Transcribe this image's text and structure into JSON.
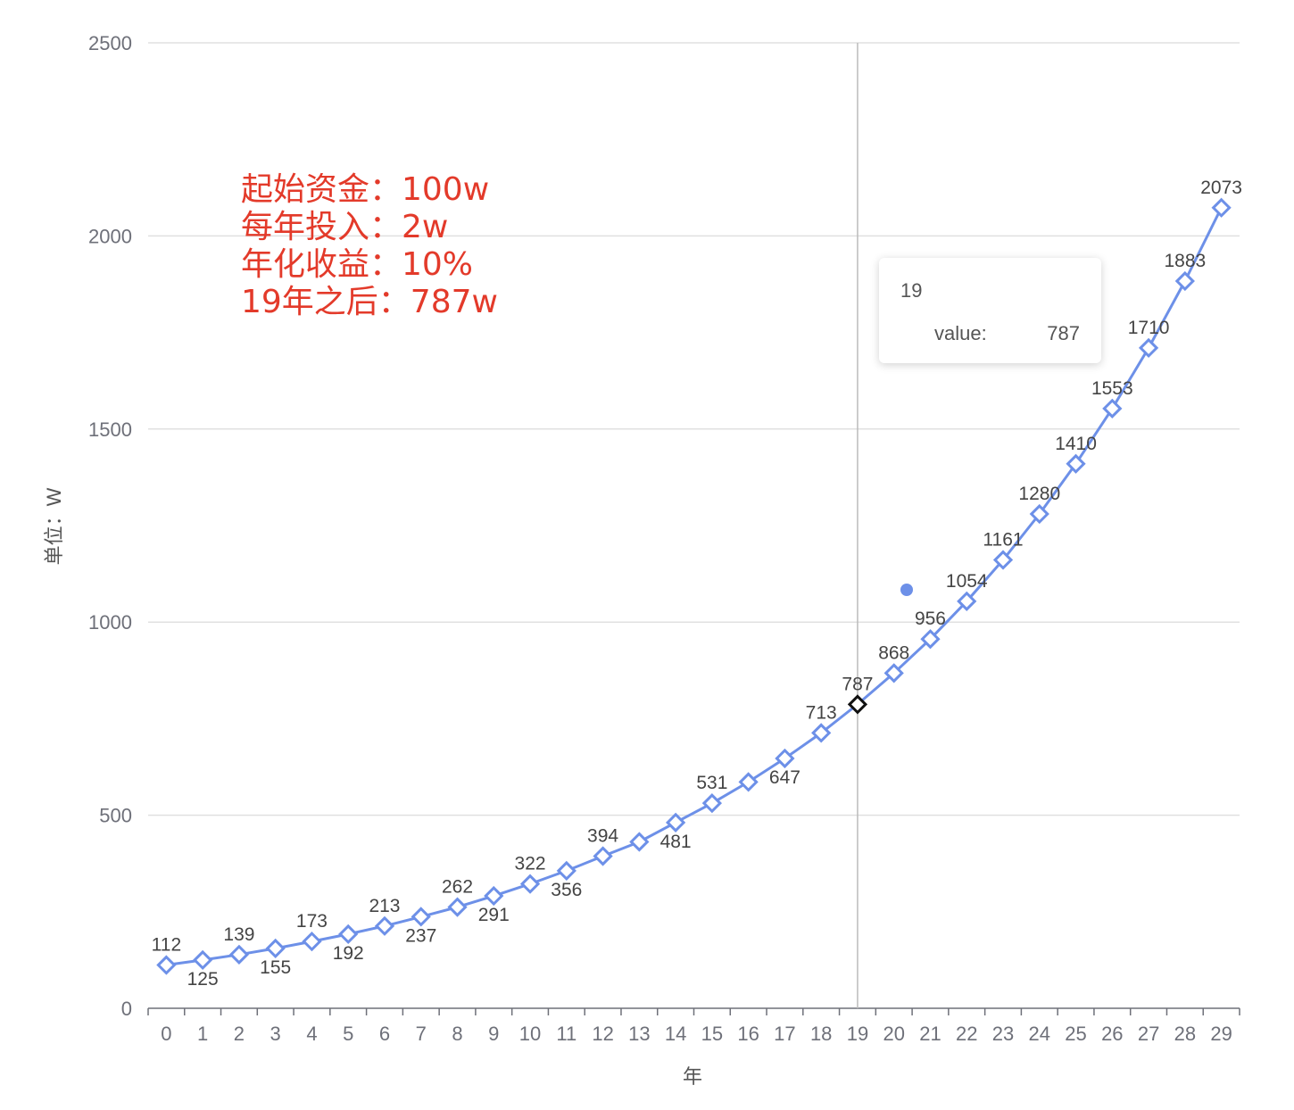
{
  "chart_data": {
    "type": "line",
    "xlabel": "年",
    "ylabel": "单位：W",
    "ylim": [
      0,
      2500
    ],
    "yticks": [
      0,
      500,
      1000,
      1500,
      2000,
      2500
    ],
    "x": [
      0,
      1,
      2,
      3,
      4,
      5,
      6,
      7,
      8,
      9,
      10,
      11,
      12,
      13,
      14,
      15,
      16,
      17,
      18,
      19,
      20,
      21,
      22,
      23,
      24,
      25,
      26,
      27,
      28,
      29
    ],
    "series": [
      {
        "values": [
          112,
          125,
          139,
          155,
          173,
          192,
          213,
          237,
          262,
          291,
          322,
          356,
          394,
          431,
          481,
          531,
          586,
          647,
          713,
          787,
          868,
          956,
          1054,
          1161,
          1280,
          1410,
          1553,
          1710,
          1883,
          2073
        ],
        "labels": [
          "112",
          "125",
          "139",
          "155",
          "173",
          "192",
          "213",
          "237",
          "262",
          "291",
          "322",
          "356",
          "394",
          "",
          "481",
          "531",
          "",
          "647",
          "713",
          "787",
          "868",
          "956",
          "1054",
          "1161",
          "1280",
          "1410",
          "1553",
          "1710",
          "1883",
          "2073"
        ]
      }
    ],
    "grid": true,
    "highlight_index": 19,
    "colors": {
      "series": "#6d90e8",
      "highlight": "#111111",
      "annotation": "#e33a2a"
    }
  },
  "annotation": {
    "lines": [
      "起始资金：100w",
      "每年投入：2w",
      "年化收益：10%",
      "19年之后：787w"
    ]
  },
  "tooltip": {
    "title": "19",
    "series_name": "value:",
    "value": "787"
  }
}
